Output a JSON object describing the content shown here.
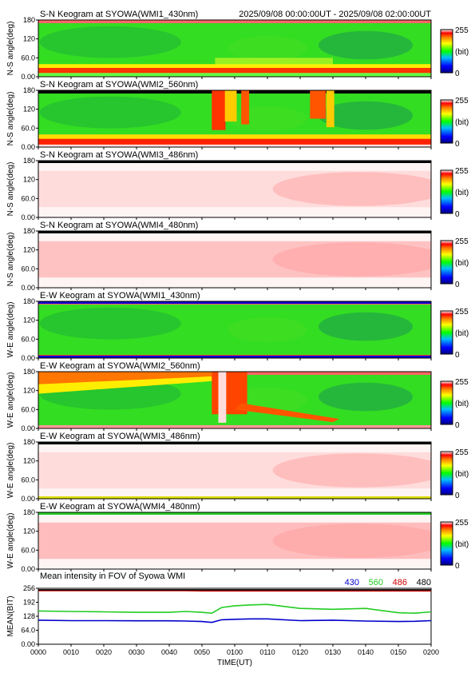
{
  "header": {
    "time_range": "2025/09/08 00:00:00UT - 2025/09/08 02:00:00UT"
  },
  "colorbar": {
    "max_label": "255",
    "unit_label": "(bit)",
    "min_label": "0"
  },
  "chart_data": [
    {
      "type": "heatmap",
      "title": "S-N Keogram at SYOWA(WMI1_430nm)",
      "ylabel": "N-S angle(deg)",
      "yticks": [
        "0.00",
        "60.0",
        "120",
        "180"
      ],
      "ylim": [
        0,
        180
      ],
      "xlim": [
        "0000",
        "0200"
      ],
      "colormap": "rainbow",
      "value_range": [
        0,
        255
      ],
      "dominant_color": "green",
      "notable_features": "red/yellow band at low angles across the whole interval"
    },
    {
      "type": "heatmap",
      "title": "S-N Keogram at SYOWA(WMI2_560nm)",
      "ylabel": "N-S angle(deg)",
      "yticks": [
        "0.00",
        "60.0",
        "120",
        "180"
      ],
      "ylim": [
        0,
        180
      ],
      "xlim": [
        "0000",
        "0200"
      ],
      "colormap": "rainbow",
      "value_range": [
        0,
        255
      ],
      "dominant_color": "green",
      "notable_features": "red band at low angles; bright red activity near 0053-0057 and 0113-0130"
    },
    {
      "type": "heatmap",
      "title": "S-N Keogram at SYOWA(WMI3_486nm)",
      "ylabel": "N-S angle(deg)",
      "yticks": [
        "0.00",
        "60.0",
        "120",
        "180"
      ],
      "ylim": [
        0,
        180
      ],
      "xlim": [
        "0000",
        "0200"
      ],
      "colormap": "rainbow",
      "value_range": [
        0,
        255
      ],
      "dominant_color": "light pink"
    },
    {
      "type": "heatmap",
      "title": "S-N Keogram at SYOWA(WMI4_480nm)",
      "ylabel": "N-S angle(deg)",
      "yticks": [
        "0.00",
        "60.0",
        "120",
        "180"
      ],
      "ylim": [
        0,
        180
      ],
      "xlim": [
        "0000",
        "0200"
      ],
      "colormap": "rainbow",
      "value_range": [
        0,
        255
      ],
      "dominant_color": "pink"
    },
    {
      "type": "heatmap",
      "title": "E-W Keogram at SYOWA(WMI1_430nm)",
      "ylabel": "W-E angle(deg)",
      "yticks": [
        "0.00",
        "60.0",
        "120",
        "180"
      ],
      "ylim": [
        0,
        180
      ],
      "xlim": [
        "0000",
        "0200"
      ],
      "colormap": "rainbow",
      "value_range": [
        0,
        255
      ],
      "dominant_color": "green"
    },
    {
      "type": "heatmap",
      "title": "E-W Keogram at SYOWA(WMI2_560nm)",
      "ylabel": "W-E angle(deg)",
      "yticks": [
        "0.00",
        "60.0",
        "120",
        "180"
      ],
      "ylim": [
        0,
        180
      ],
      "xlim": [
        "0000",
        "0200"
      ],
      "colormap": "rainbow",
      "value_range": [
        0,
        255
      ],
      "dominant_color": "green",
      "notable_features": "red/yellow at high angles before 0053; bright red activity near 0053-0100"
    },
    {
      "type": "heatmap",
      "title": "E-W Keogram at SYOWA(WMI3_486nm)",
      "ylabel": "W-E angle(deg)",
      "yticks": [
        "0.00",
        "60.0",
        "120",
        "180"
      ],
      "ylim": [
        0,
        180
      ],
      "xlim": [
        "0000",
        "0200"
      ],
      "colormap": "rainbow",
      "value_range": [
        0,
        255
      ],
      "dominant_color": "light pink"
    },
    {
      "type": "heatmap",
      "title": "E-W Keogram at SYOWA(WMI4_480nm)",
      "ylabel": "W-E angle(deg)",
      "yticks": [
        "0.00",
        "60.0",
        "120",
        "180"
      ],
      "ylim": [
        0,
        180
      ],
      "xlim": [
        "0000",
        "0200"
      ],
      "colormap": "rainbow",
      "value_range": [
        0,
        255
      ],
      "dominant_color": "pink"
    },
    {
      "type": "line",
      "title": "Mean intensity in FOV of Syowa WMI",
      "xlabel": "TIME(UT)",
      "ylabel": "MEAN(BIT)",
      "ylim": [
        0,
        256
      ],
      "yticks": [
        "0.00",
        "64.0",
        "128",
        "192",
        "256"
      ],
      "xticks": [
        "0000",
        "0010",
        "0020",
        "0030",
        "0040",
        "0050",
        "0100",
        "0110",
        "0120",
        "0130",
        "0140",
        "0150",
        "0200"
      ],
      "x": [
        0,
        10,
        20,
        30,
        40,
        45,
        50,
        53,
        56,
        60,
        65,
        70,
        80,
        90,
        100,
        110,
        115,
        120
      ],
      "series": [
        {
          "name": "430",
          "color": "#0000cc",
          "values": [
            110,
            108,
            108,
            107,
            107,
            106,
            104,
            100,
            112,
            114,
            116,
            116,
            108,
            110,
            106,
            104,
            105,
            108
          ]
        },
        {
          "name": "560",
          "color": "#22cc22",
          "values": [
            152,
            150,
            148,
            146,
            146,
            150,
            146,
            142,
            168,
            176,
            180,
            182,
            164,
            160,
            164,
            144,
            142,
            148
          ]
        },
        {
          "name": "486",
          "color": "#cc0000",
          "values": [
            245,
            245,
            245,
            245,
            245,
            245,
            244,
            244,
            244,
            244,
            244,
            244,
            244,
            244,
            244,
            244,
            244,
            244
          ]
        },
        {
          "name": "480",
          "color": "#000000",
          "values": [
            249,
            249,
            249,
            249,
            249,
            249,
            249,
            249,
            249,
            249,
            249,
            249,
            249,
            249,
            249,
            249,
            249,
            249
          ]
        }
      ]
    }
  ]
}
